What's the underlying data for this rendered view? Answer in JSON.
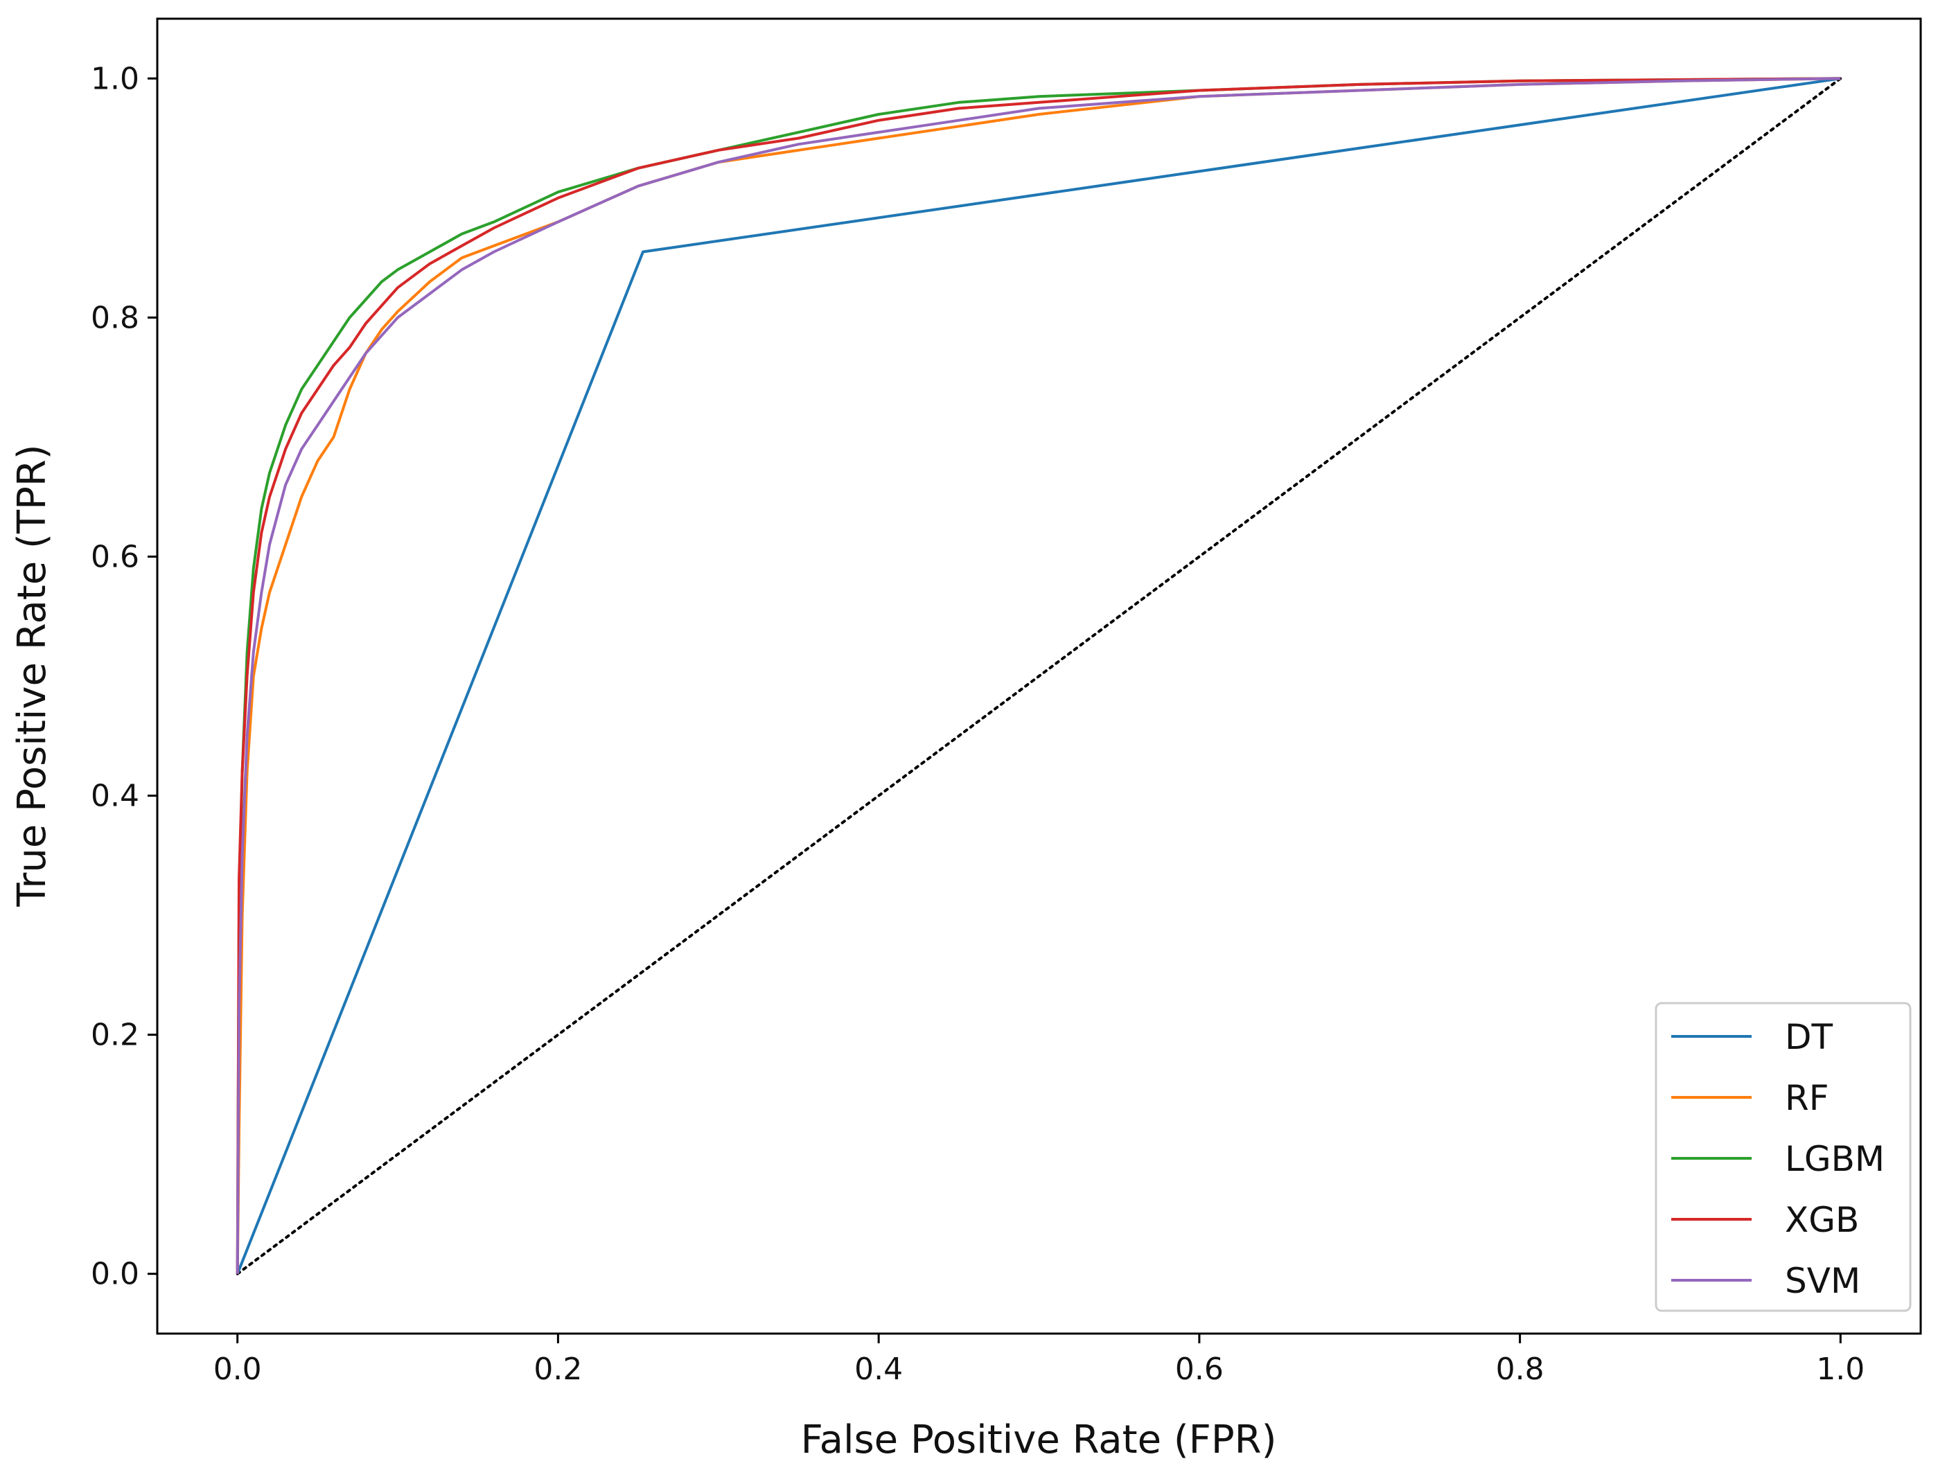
{
  "chart_data": {
    "type": "line",
    "title": "",
    "xlabel": "False Positive Rate (FPR)",
    "ylabel": "True Positive Rate (TPR)",
    "xlim": [
      -0.05,
      1.05
    ],
    "ylim": [
      -0.05,
      1.05
    ],
    "x_ticks": [
      "0.0",
      "0.2",
      "0.4",
      "0.6",
      "0.8",
      "1.0"
    ],
    "y_ticks": [
      "0.0",
      "0.2",
      "0.4",
      "0.6",
      "0.8",
      "1.0"
    ],
    "grid": false,
    "legend_position": "lower right",
    "reference_line": {
      "style": "dotted",
      "color": "#000000",
      "x": [
        0,
        1
      ],
      "y": [
        0,
        1
      ]
    },
    "series": [
      {
        "name": "DT",
        "color": "#1f77b4",
        "x": [
          0.0,
          0.253,
          1.0
        ],
        "y": [
          0.0,
          0.855,
          1.0
        ]
      },
      {
        "name": "RF",
        "color": "#ff7f0e",
        "x": [
          0.0,
          0.001,
          0.003,
          0.006,
          0.01,
          0.015,
          0.02,
          0.03,
          0.04,
          0.05,
          0.06,
          0.07,
          0.08,
          0.09,
          0.1,
          0.12,
          0.14,
          0.16,
          0.2,
          0.25,
          0.3,
          0.35,
          0.4,
          0.45,
          0.5,
          0.6,
          0.7,
          0.8,
          0.9,
          1.0
        ],
        "y": [
          0.0,
          0.12,
          0.3,
          0.42,
          0.5,
          0.54,
          0.57,
          0.61,
          0.65,
          0.68,
          0.7,
          0.74,
          0.77,
          0.79,
          0.805,
          0.83,
          0.85,
          0.86,
          0.88,
          0.91,
          0.93,
          0.94,
          0.95,
          0.96,
          0.97,
          0.985,
          0.99,
          0.995,
          0.998,
          1.0
        ]
      },
      {
        "name": "LGBM",
        "color": "#2ca02c",
        "x": [
          0.0,
          0.001,
          0.003,
          0.006,
          0.01,
          0.015,
          0.02,
          0.03,
          0.04,
          0.05,
          0.06,
          0.07,
          0.08,
          0.09,
          0.1,
          0.12,
          0.14,
          0.16,
          0.2,
          0.25,
          0.3,
          0.35,
          0.4,
          0.45,
          0.5,
          0.6,
          0.7,
          0.8,
          0.9,
          1.0
        ],
        "y": [
          0.0,
          0.3,
          0.42,
          0.52,
          0.59,
          0.64,
          0.67,
          0.71,
          0.74,
          0.76,
          0.78,
          0.8,
          0.815,
          0.83,
          0.84,
          0.855,
          0.87,
          0.88,
          0.905,
          0.925,
          0.94,
          0.955,
          0.97,
          0.98,
          0.985,
          0.99,
          0.995,
          0.998,
          0.999,
          1.0
        ]
      },
      {
        "name": "XGB",
        "color": "#d62728",
        "x": [
          0.0,
          0.001,
          0.003,
          0.006,
          0.01,
          0.015,
          0.02,
          0.03,
          0.04,
          0.05,
          0.06,
          0.07,
          0.08,
          0.09,
          0.1,
          0.12,
          0.14,
          0.16,
          0.2,
          0.25,
          0.3,
          0.35,
          0.4,
          0.45,
          0.5,
          0.6,
          0.7,
          0.8,
          0.9,
          1.0
        ],
        "y": [
          0.0,
          0.33,
          0.42,
          0.5,
          0.57,
          0.62,
          0.65,
          0.69,
          0.72,
          0.74,
          0.76,
          0.775,
          0.795,
          0.81,
          0.825,
          0.845,
          0.86,
          0.875,
          0.9,
          0.925,
          0.94,
          0.95,
          0.965,
          0.975,
          0.98,
          0.99,
          0.995,
          0.998,
          0.999,
          1.0
        ]
      },
      {
        "name": "SVM",
        "color": "#9467bd",
        "x": [
          0.0,
          0.001,
          0.003,
          0.006,
          0.01,
          0.015,
          0.02,
          0.03,
          0.04,
          0.05,
          0.06,
          0.07,
          0.08,
          0.09,
          0.1,
          0.12,
          0.14,
          0.16,
          0.2,
          0.25,
          0.3,
          0.35,
          0.4,
          0.45,
          0.5,
          0.6,
          0.7,
          0.8,
          0.9,
          1.0
        ],
        "y": [
          0.0,
          0.22,
          0.35,
          0.45,
          0.52,
          0.57,
          0.61,
          0.66,
          0.69,
          0.71,
          0.73,
          0.75,
          0.77,
          0.785,
          0.8,
          0.82,
          0.84,
          0.855,
          0.88,
          0.91,
          0.93,
          0.945,
          0.955,
          0.965,
          0.975,
          0.985,
          0.99,
          0.995,
          0.998,
          1.0
        ]
      }
    ]
  }
}
